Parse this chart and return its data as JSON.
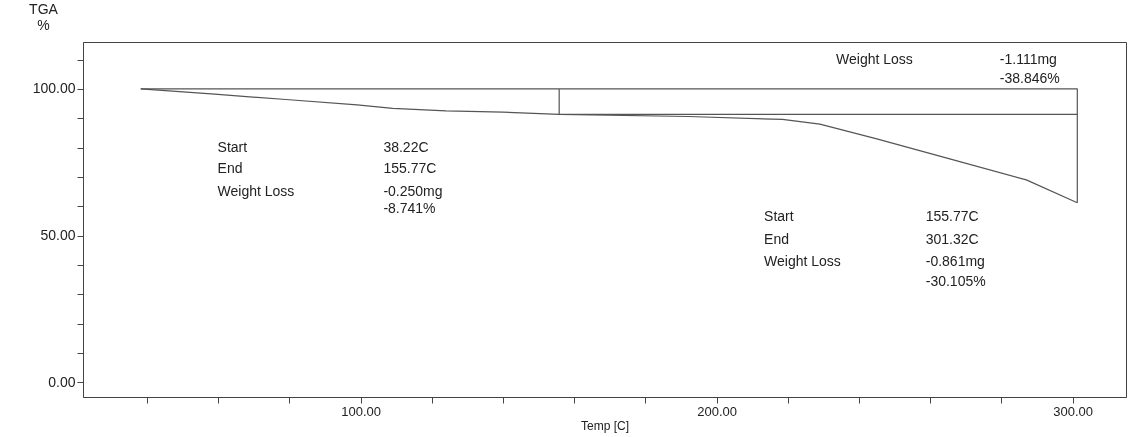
{
  "chart_data": {
    "type": "line",
    "xlabel": "Temp  [C]",
    "ylabel": "TGA\n%",
    "xlim": [
      22,
      315
    ],
    "ylim": [
      -5,
      116
    ],
    "xticks": [
      {
        "value": 40,
        "label": null
      },
      {
        "value": 60,
        "label": null
      },
      {
        "value": 80,
        "label": null
      },
      {
        "value": 100,
        "label": "100.00"
      },
      {
        "value": 120,
        "label": null
      },
      {
        "value": 140,
        "label": null
      },
      {
        "value": 160,
        "label": null
      },
      {
        "value": 180,
        "label": null
      },
      {
        "value": 200,
        "label": "200.00"
      },
      {
        "value": 220,
        "label": null
      },
      {
        "value": 240,
        "label": null
      },
      {
        "value": 260,
        "label": null
      },
      {
        "value": 280,
        "label": null
      },
      {
        "value": 300,
        "label": "300.00"
      }
    ],
    "yticks": [
      {
        "value": 0,
        "label": "0.00"
      },
      {
        "value": 10,
        "label": null
      },
      {
        "value": 20,
        "label": null
      },
      {
        "value": 30,
        "label": null
      },
      {
        "value": 40,
        "label": null
      },
      {
        "value": 50,
        "label": "50.00"
      },
      {
        "value": 60,
        "label": null
      },
      {
        "value": 70,
        "label": null
      },
      {
        "value": 80,
        "label": null
      },
      {
        "value": 90,
        "label": null
      },
      {
        "value": 100,
        "label": "100.00"
      },
      {
        "value": 110,
        "label": null
      }
    ],
    "grid": false,
    "legend": false,
    "line_style": "solid",
    "series": [
      {
        "color": "#555555",
        "x": [
          38.22,
          59,
          79,
          99,
          109,
          124,
          140,
          155.77,
          192,
          218.5,
          229,
          245,
          266,
          287,
          301.32
        ],
        "values": [
          100,
          98.2,
          96.4,
          94.6,
          93.4,
          92.5,
          92.1,
          91.3,
          90.6,
          89.6,
          88,
          83,
          76,
          69,
          61.2
        ]
      },
      {
        "color": "#555555",
        "x": [
          38.22,
          301.32,
          301.32
        ],
        "values": [
          100,
          100,
          61.2
        ]
      },
      {
        "color": "#555555",
        "x": [
          155.77,
          155.77,
          301.32
        ],
        "values": [
          100,
          91.3,
          91.3
        ]
      }
    ],
    "annotations": [
      "Start",
      "38.22C",
      "End",
      "155.77C",
      "Weight Loss",
      "-0.250mg",
      "-8.741%",
      "Start",
      "155.77C",
      "End",
      "301.32C",
      "Weight Loss",
      "-0.861mg",
      "-30.105%",
      "Weight Loss",
      "-1.111mg",
      "-38.846%"
    ]
  }
}
